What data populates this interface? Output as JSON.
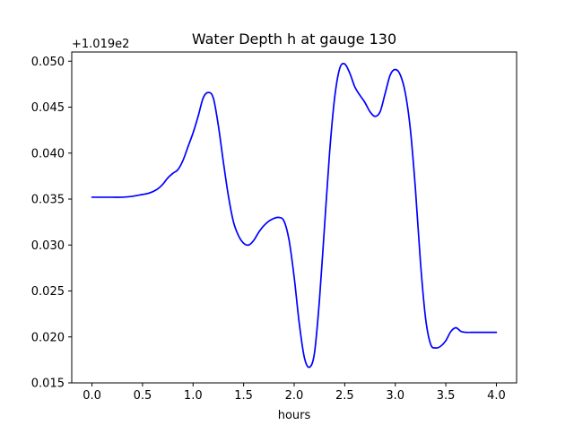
{
  "chart_data": {
    "type": "line",
    "title": "Water Depth h at gauge 130",
    "xlabel": "hours",
    "ylabel": "",
    "offset_label": "+1.019e2",
    "xlim": [
      -0.2,
      4.2
    ],
    "ylim": [
      0.015,
      0.051
    ],
    "xticks": [
      0.0,
      0.5,
      1.0,
      1.5,
      2.0,
      2.5,
      3.0,
      3.5,
      4.0
    ],
    "xtick_labels": [
      "0.0",
      "0.5",
      "1.0",
      "1.5",
      "2.0",
      "2.5",
      "3.0",
      "3.5",
      "4.0"
    ],
    "yticks": [
      0.015,
      0.02,
      0.025,
      0.03,
      0.035,
      0.04,
      0.045,
      0.05
    ],
    "ytick_labels": [
      "0.015",
      "0.020",
      "0.025",
      "0.030",
      "0.035",
      "0.040",
      "0.045",
      "0.050"
    ],
    "grid": false,
    "series": [
      {
        "color": "#0000ff",
        "x": [
          0.0,
          0.1,
          0.2,
          0.3,
          0.4,
          0.5,
          0.55,
          0.6,
          0.65,
          0.7,
          0.75,
          0.8,
          0.85,
          0.9,
          0.95,
          1.0,
          1.05,
          1.1,
          1.15,
          1.2,
          1.25,
          1.3,
          1.35,
          1.4,
          1.45,
          1.5,
          1.55,
          1.6,
          1.65,
          1.7,
          1.75,
          1.8,
          1.85,
          1.9,
          1.95,
          2.0,
          2.05,
          2.1,
          2.15,
          2.2,
          2.25,
          2.3,
          2.35,
          2.4,
          2.45,
          2.5,
          2.55,
          2.6,
          2.65,
          2.7,
          2.75,
          2.8,
          2.85,
          2.9,
          2.95,
          3.0,
          3.05,
          3.1,
          3.15,
          3.2,
          3.25,
          3.3,
          3.35,
          3.4,
          3.45,
          3.5,
          3.55,
          3.6,
          3.65,
          3.7,
          3.75,
          3.8,
          3.85,
          3.9,
          3.95,
          4.0
        ],
        "y": [
          0.0352,
          0.0352,
          0.0352,
          0.0352,
          0.0353,
          0.0355,
          0.0356,
          0.0358,
          0.0361,
          0.0366,
          0.0373,
          0.0378,
          0.0382,
          0.0392,
          0.0407,
          0.0422,
          0.044,
          0.046,
          0.0466,
          0.046,
          0.043,
          0.039,
          0.0353,
          0.0325,
          0.031,
          0.0302,
          0.03,
          0.0305,
          0.0314,
          0.0321,
          0.0326,
          0.0329,
          0.033,
          0.0326,
          0.0305,
          0.0265,
          0.0215,
          0.0178,
          0.0167,
          0.0182,
          0.024,
          0.032,
          0.04,
          0.046,
          0.0492,
          0.0497,
          0.0487,
          0.0472,
          0.0463,
          0.0455,
          0.0445,
          0.044,
          0.0445,
          0.0465,
          0.0485,
          0.0491,
          0.0485,
          0.0465,
          0.0425,
          0.036,
          0.028,
          0.022,
          0.0192,
          0.0188,
          0.019,
          0.0196,
          0.0206,
          0.021,
          0.0206,
          0.0205,
          0.0205,
          0.0205,
          0.0205,
          0.0205,
          0.0205,
          0.0205
        ]
      }
    ]
  }
}
